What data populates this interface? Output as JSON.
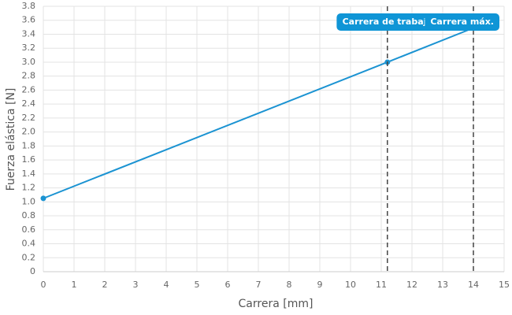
{
  "chart_data": {
    "type": "line",
    "x_label": "Carrera [mm]",
    "y_label": "Fuerza elástica [N]",
    "series": [
      {
        "color": "#1b93d2",
        "x": [
          0,
          11.2,
          14
        ],
        "values": [
          1.05,
          3.0,
          3.49
        ]
      }
    ],
    "annotations": [
      {
        "x": 11.2,
        "label": "Carrera de trabajo"
      },
      {
        "x": 14,
        "label": "Carrera máx."
      }
    ],
    "xlim": [
      0,
      15
    ],
    "xticks": [
      0,
      1,
      2,
      3,
      4,
      5,
      6,
      7,
      8,
      9,
      10,
      11,
      12,
      13,
      14,
      15
    ],
    "ylim": [
      0,
      3.8
    ],
    "yticks": [
      0,
      0.2,
      0.4,
      0.6,
      0.8,
      {
        "value": 1,
        "label": "1.0"
      },
      1.2,
      1.4,
      1.6,
      1.8,
      {
        "value": 2,
        "label": "2.0"
      },
      2.2,
      2.4,
      2.6,
      2.8,
      {
        "value": 3,
        "label": "3.0"
      },
      3.2,
      3.4,
      3.6,
      3.8
    ],
    "grid": true
  }
}
